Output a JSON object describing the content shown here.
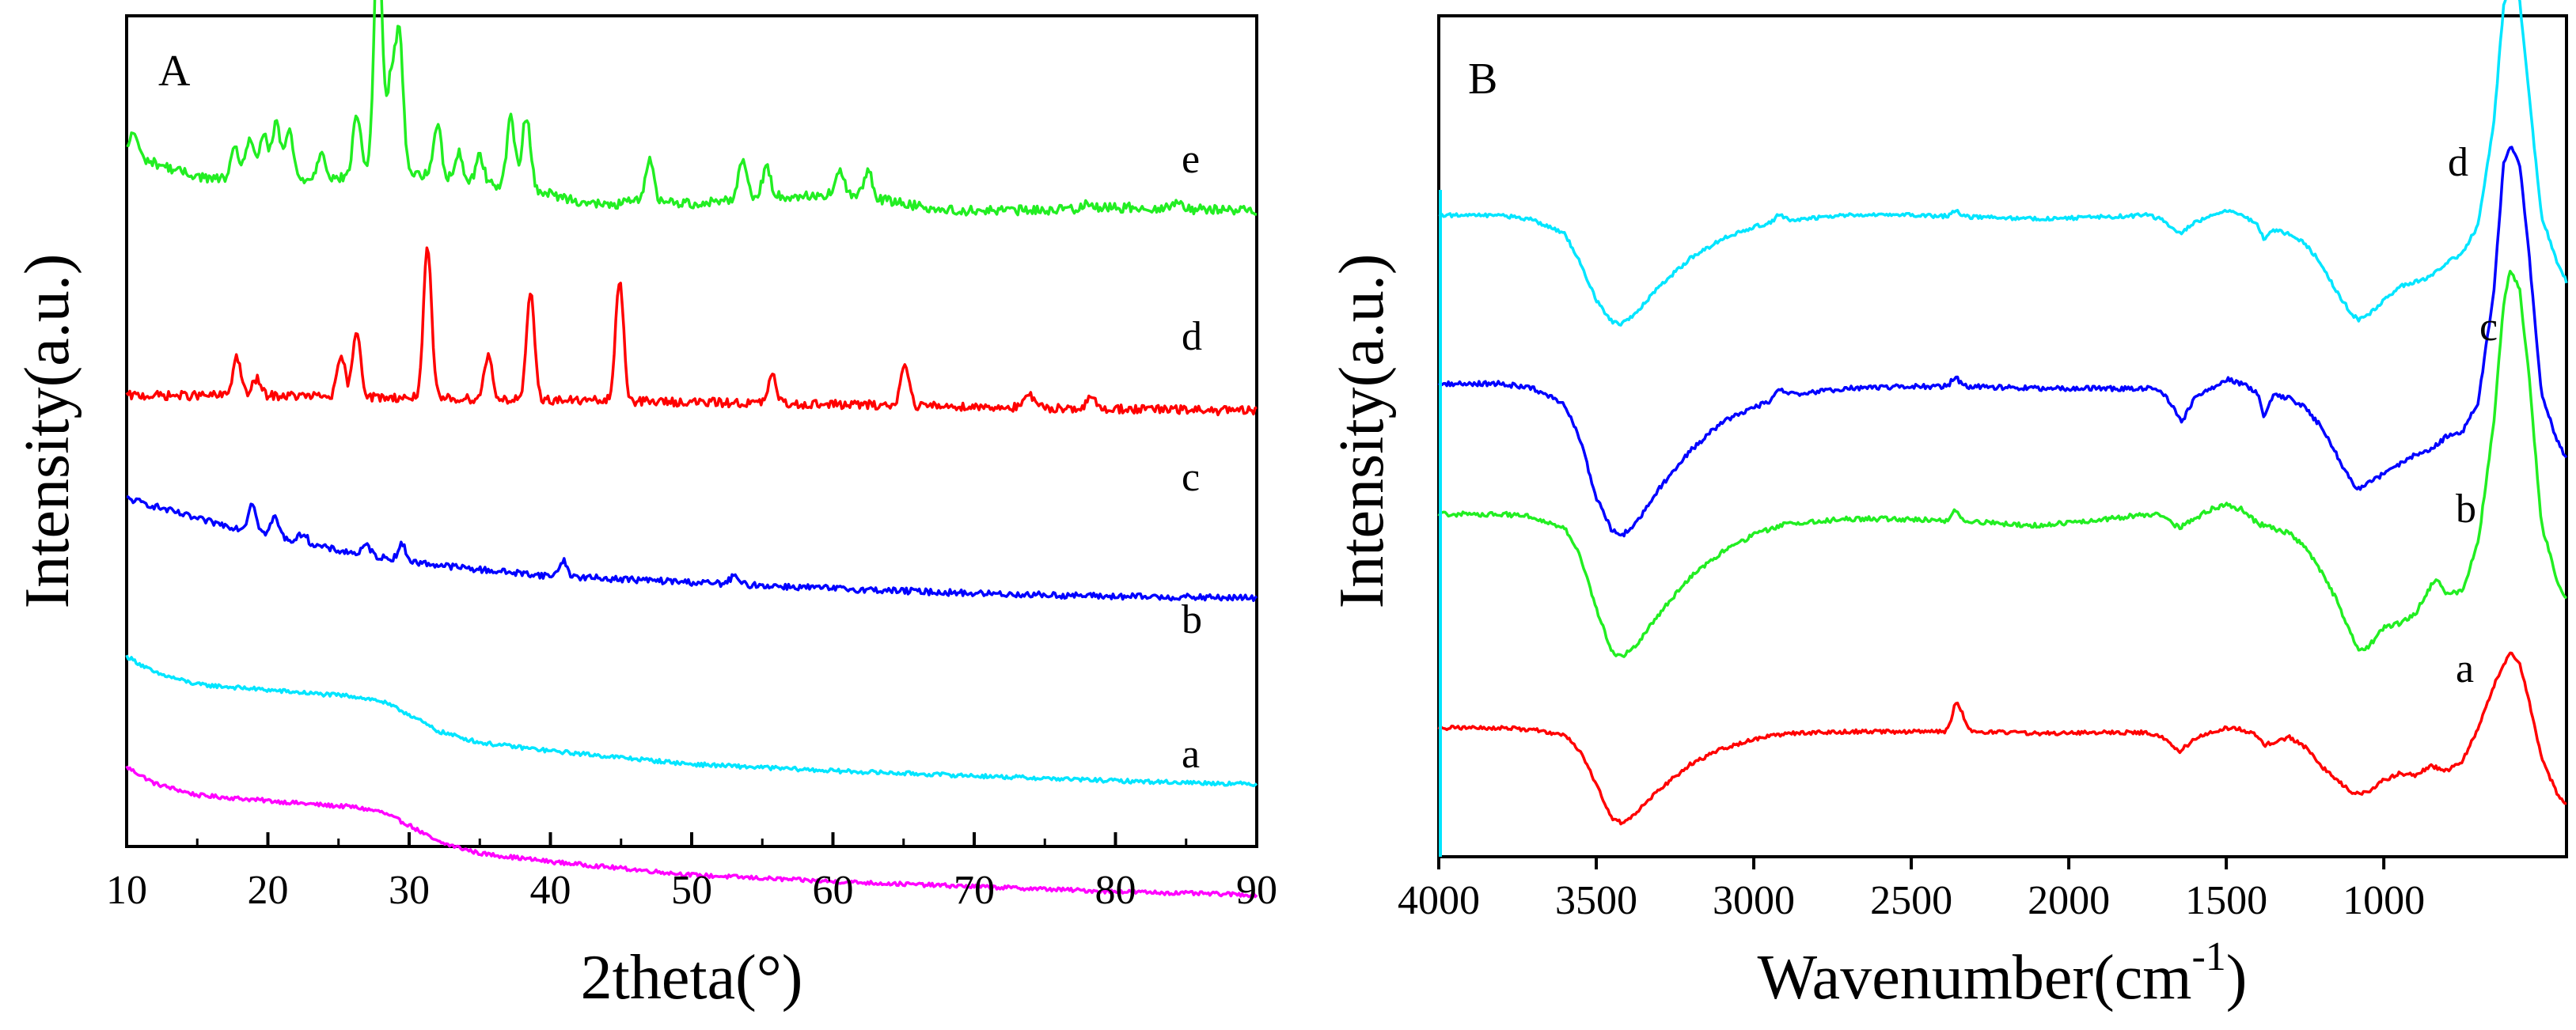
{
  "chart_data": [
    {
      "panel_label": "A",
      "type": "line",
      "title": "",
      "xlabel": "2theta(°)",
      "ylabel": "Intensity(a.u.)",
      "xlim": [
        10,
        90
      ],
      "xticks": [
        "10",
        "20",
        "30",
        "40",
        "50",
        "60",
        "70",
        "80",
        "90"
      ],
      "yticks": [],
      "grid": false,
      "series": [
        {
          "name": "a",
          "color": "#ff00ff",
          "x": [
            10,
            12,
            15,
            18,
            21,
            24,
            26,
            28,
            30,
            32,
            35,
            40,
            45,
            50,
            60,
            70,
            80,
            90
          ],
          "y": [
            0.05,
            -0.05,
            -0.12,
            -0.14,
            -0.16,
            -0.18,
            -0.19,
            -0.22,
            -0.3,
            -0.4,
            -0.47,
            -0.52,
            -0.56,
            -0.6,
            -0.64,
            -0.67,
            -0.7,
            -0.72
          ],
          "peaks": [],
          "noise": 0.012
        },
        {
          "name": "b",
          "color": "#00e5ff",
          "x": [
            10,
            12,
            15,
            18,
            21,
            24,
            26,
            28,
            30,
            32,
            35,
            40,
            45,
            50,
            60,
            70,
            80,
            90
          ],
          "y": [
            0.05,
            -0.05,
            -0.12,
            -0.14,
            -0.16,
            -0.18,
            -0.19,
            -0.22,
            -0.3,
            -0.4,
            -0.47,
            -0.52,
            -0.56,
            -0.6,
            -0.64,
            -0.67,
            -0.7,
            -0.72
          ],
          "peaks": [],
          "noise": 0.012
        },
        {
          "name": "c",
          "color": "#0000ff",
          "x": [
            10,
            12,
            15,
            20,
            25,
            30,
            35,
            40,
            50,
            60,
            70,
            80,
            90
          ],
          "y": [
            0.05,
            0.0,
            -0.08,
            -0.18,
            -0.28,
            -0.35,
            -0.4,
            -0.44,
            -0.48,
            -0.52,
            -0.55,
            -0.57,
            -0.58
          ],
          "peaks": [
            [
              18.9,
              0.18
            ],
            [
              20.5,
              0.12
            ],
            [
              22.5,
              0.06
            ],
            [
              27.0,
              0.06
            ],
            [
              29.5,
              0.1
            ],
            [
              40.9,
              0.1
            ],
            [
              53.0,
              0.05
            ]
          ],
          "noise": 0.02
        },
        {
          "name": "d",
          "color": "#ff0000",
          "x": [
            10,
            20,
            30,
            40,
            50,
            60,
            70,
            80,
            90
          ],
          "y": [
            0.0,
            0.0,
            -0.02,
            -0.04,
            -0.06,
            -0.08,
            -0.1,
            -0.12,
            -0.14
          ],
          "peaks": [
            [
              17.8,
              0.35
            ],
            [
              19.2,
              0.15
            ],
            [
              25.2,
              0.35
            ],
            [
              26.3,
              0.6
            ],
            [
              31.3,
              1.35
            ],
            [
              35.6,
              0.4
            ],
            [
              38.6,
              0.95
            ],
            [
              44.9,
              1.1
            ],
            [
              55.7,
              0.25
            ],
            [
              65.1,
              0.4
            ],
            [
              73.9,
              0.12
            ],
            [
              78.3,
              0.1
            ]
          ],
          "noise": 0.04
        },
        {
          "name": "e",
          "color": "#22ee22",
          "x": [
            10,
            12,
            14,
            16,
            18,
            20,
            22,
            24,
            26,
            28,
            30,
            32,
            34,
            36,
            38,
            40,
            42,
            44,
            46,
            48,
            50,
            52,
            54,
            56,
            58,
            60,
            62,
            64,
            66,
            68,
            70,
            72,
            74,
            76,
            78,
            80,
            82,
            84,
            86,
            88,
            90
          ],
          "y": [
            0.55,
            0.45,
            0.35,
            0.28,
            0.3,
            0.32,
            0.28,
            0.28,
            0.3,
            0.4,
            0.35,
            0.3,
            0.25,
            0.22,
            0.22,
            0.12,
            0.05,
            0.0,
            0.05,
            0.05,
            0.02,
            0.05,
            0.1,
            0.1,
            0.1,
            0.12,
            0.1,
            0.05,
            0.0,
            -0.05,
            -0.05,
            -0.05,
            -0.05,
            -0.04,
            -0.03,
            -0.02,
            -0.02,
            -0.03,
            -0.04,
            -0.04,
            -0.05
          ],
          "peaks": [
            [
              10.5,
              0.25
            ],
            [
              17.7,
              0.3
            ],
            [
              18.7,
              0.4
            ],
            [
              19.7,
              0.45
            ],
            [
              20.6,
              0.55
            ],
            [
              21.5,
              0.5
            ],
            [
              23.8,
              0.3
            ],
            [
              26.3,
              0.65
            ],
            [
              27.8,
              2.55
            ],
            [
              28.7,
              0.9
            ],
            [
              29.3,
              1.4
            ],
            [
              32.0,
              0.55
            ],
            [
              33.5,
              0.3
            ],
            [
              35.0,
              0.3
            ],
            [
              37.2,
              0.7
            ],
            [
              38.3,
              0.75
            ],
            [
              47.0,
              0.45
            ],
            [
              53.6,
              0.4
            ],
            [
              55.3,
              0.3
            ],
            [
              60.5,
              0.25
            ],
            [
              62.5,
              0.3
            ],
            [
              78.0,
              0.08
            ],
            [
              84.5,
              0.1
            ]
          ],
          "noise": 0.05
        }
      ],
      "curve_labels": [
        "a",
        "b",
        "c",
        "d",
        "e"
      ]
    },
    {
      "panel_label": "B",
      "type": "line",
      "title": "",
      "xlabel": "Wavenumber(cm",
      "xlabel_sup": "-1",
      "xlabel_tail": ")",
      "ylabel": "Intensity(a.u.)",
      "xlim": [
        4000,
        420
      ],
      "xticks": [
        "4000",
        "3500",
        "3000",
        "2500",
        "2000",
        "1500",
        "1000"
      ],
      "yticks": [],
      "grid": false,
      "series": [
        {
          "name": "a",
          "color": "#ff0000",
          "x": [
            4000,
            3800,
            3700,
            3600,
            3550,
            3500,
            3450,
            3420,
            3380,
            3300,
            3200,
            3100,
            3000,
            2900,
            2700,
            2500,
            2300,
            2100,
            1900,
            1750,
            1700,
            1650,
            1600,
            1550,
            1500,
            1450,
            1400,
            1380,
            1300,
            1250,
            1200,
            1150,
            1100,
            1080,
            1050,
            1000,
            950,
            900,
            850,
            800,
            750,
            700,
            650,
            600,
            570,
            540,
            500,
            450,
            420
          ],
          "y": [
            0.0,
            0.0,
            -0.02,
            -0.08,
            -0.25,
            -0.6,
            -0.95,
            -1.0,
            -0.92,
            -0.65,
            -0.38,
            -0.22,
            -0.12,
            -0.06,
            -0.04,
            -0.04,
            -0.04,
            -0.06,
            -0.05,
            -0.05,
            -0.1,
            -0.25,
            -0.12,
            -0.05,
            0.0,
            -0.02,
            -0.08,
            -0.18,
            -0.1,
            -0.2,
            -0.4,
            -0.55,
            -0.68,
            -0.7,
            -0.68,
            -0.55,
            -0.48,
            -0.5,
            -0.4,
            -0.45,
            -0.35,
            0.0,
            0.45,
            0.8,
            0.7,
            0.3,
            -0.3,
            -0.7,
            -0.8
          ],
          "peaks": [
            [
              2360,
              0.25
            ],
            [
              2340,
              0.15
            ]
          ],
          "noise": 0.02
        },
        {
          "name": "b",
          "color": "#22ee22",
          "x": [
            4000,
            3800,
            3700,
            3600,
            3550,
            3500,
            3450,
            3420,
            3380,
            3300,
            3200,
            3100,
            3000,
            2900,
            2700,
            2500,
            2300,
            2100,
            1900,
            1750,
            1700,
            1650,
            1600,
            1550,
            1500,
            1450,
            1400,
            1300,
            1250,
            1200,
            1150,
            1100,
            1080,
            1050,
            1000,
            950,
            900,
            850,
            830,
            800,
            750,
            700,
            650,
            620,
            600,
            570,
            540,
            500,
            450,
            420
          ],
          "y": [
            0.0,
            0.0,
            -0.03,
            -0.15,
            -0.45,
            -1.0,
            -1.45,
            -1.5,
            -1.4,
            -1.05,
            -0.65,
            -0.4,
            -0.22,
            -0.1,
            -0.05,
            -0.05,
            -0.08,
            -0.12,
            -0.06,
            0.0,
            0.0,
            -0.15,
            -0.05,
            0.05,
            0.1,
            0.05,
            -0.1,
            -0.2,
            -0.35,
            -0.6,
            -0.9,
            -1.3,
            -1.42,
            -1.4,
            -1.2,
            -1.15,
            -1.05,
            -0.75,
            -0.7,
            -0.85,
            -0.8,
            -0.3,
            1.0,
            2.2,
            2.55,
            2.4,
            1.5,
            -0.1,
            -0.7,
            -0.9
          ],
          "peaks": [
            [
              2360,
              0.1
            ]
          ],
          "noise": 0.025
        },
        {
          "name": "c",
          "color": "#0000ff",
          "x": [
            4000,
            3800,
            3700,
            3600,
            3550,
            3500,
            3450,
            3420,
            3380,
            3300,
            3200,
            3100,
            3000,
            2900,
            2700,
            2500,
            2300,
            2100,
            1900,
            1750,
            1700,
            1650,
            1640,
            1600,
            1550,
            1500,
            1450,
            1400,
            1380,
            1350,
            1300,
            1250,
            1200,
            1150,
            1100,
            1080,
            1050,
            1000,
            950,
            900,
            850,
            800,
            750,
            700,
            650,
            620,
            600,
            570,
            540,
            500,
            450,
            420
          ],
          "y": [
            0.0,
            0.0,
            -0.05,
            -0.22,
            -0.6,
            -1.2,
            -1.55,
            -1.6,
            -1.5,
            -1.1,
            -0.7,
            -0.4,
            -0.25,
            -0.12,
            -0.05,
            -0.03,
            -0.03,
            -0.05,
            -0.05,
            -0.05,
            -0.1,
            -0.35,
            -0.4,
            -0.15,
            -0.05,
            0.05,
            0.0,
            -0.1,
            -0.35,
            -0.12,
            -0.15,
            -0.25,
            -0.45,
            -0.75,
            -1.05,
            -1.1,
            -1.05,
            -0.95,
            -0.85,
            -0.75,
            -0.7,
            -0.55,
            -0.5,
            -0.2,
            1.0,
            2.3,
            2.5,
            2.35,
            1.4,
            -0.1,
            -0.6,
            -0.8
          ],
          "peaks": [
            [
              2920,
              0.08
            ],
            [
              2360,
              0.1
            ]
          ],
          "noise": 0.025
        },
        {
          "name": "d",
          "color": "#00e5ff",
          "x": [
            4000,
            3800,
            3700,
            3600,
            3550,
            3500,
            3450,
            3420,
            3380,
            3300,
            3200,
            3100,
            3000,
            2900,
            2700,
            2500,
            2300,
            2100,
            1900,
            1750,
            1700,
            1650,
            1600,
            1550,
            1500,
            1450,
            1400,
            1380,
            1350,
            1300,
            1250,
            1200,
            1150,
            1100,
            1080,
            1050,
            1000,
            950,
            900,
            850,
            800,
            750,
            700,
            650,
            620,
            600,
            570,
            540,
            500,
            450,
            420
          ],
          "y": [
            0.0,
            0.0,
            -0.05,
            -0.2,
            -0.5,
            -0.9,
            -1.12,
            -1.15,
            -1.05,
            -0.75,
            -0.45,
            -0.25,
            -0.12,
            -0.05,
            0.0,
            0.0,
            -0.02,
            -0.04,
            -0.02,
            0.0,
            -0.05,
            -0.2,
            -0.08,
            0.0,
            0.05,
            0.0,
            -0.1,
            -0.25,
            -0.15,
            -0.2,
            -0.3,
            -0.5,
            -0.8,
            -1.05,
            -1.1,
            -1.05,
            -0.9,
            -0.75,
            -0.7,
            -0.65,
            -0.5,
            -0.4,
            -0.1,
            1.0,
            2.2,
            2.45,
            2.3,
            1.3,
            0.0,
            -0.5,
            -0.7
          ],
          "peaks": [
            [
              2920,
              0.08
            ],
            [
              2360,
              0.06
            ]
          ],
          "noise": 0.02
        }
      ],
      "curve_labels": [
        "a",
        "b",
        "c",
        "d"
      ]
    }
  ]
}
